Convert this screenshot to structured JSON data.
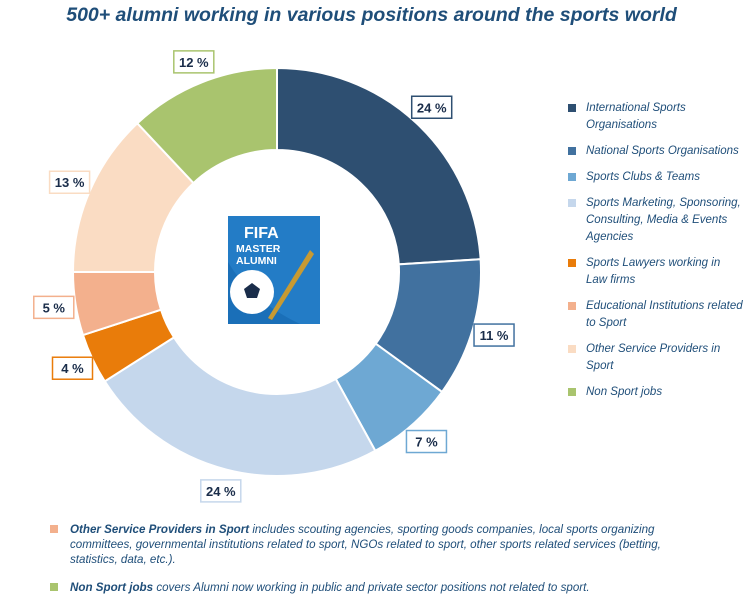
{
  "chart_data": {
    "type": "donut",
    "title": "500+ alumni working in various positions around the sports world",
    "categories": [
      "International Sports Organisations",
      "National Sports Organisations",
      "Sports Clubs & Teams",
      "Sports Marketing, Sponsoring, Consulting, Media & Events Agencies",
      "Sports Lawyers working in Law firms",
      "Educational Institutions related to Sport",
      "Other Service Providers in Sport",
      "Non Sport jobs"
    ],
    "values": [
      24,
      11,
      7,
      24,
      4,
      5,
      13,
      12
    ],
    "data_labels": [
      "24 %",
      "11 %",
      "7 %",
      "24 %",
      "4 %",
      "5 %",
      "13 %",
      "12 %"
    ],
    "colors": [
      "#2e4f71",
      "#41719f",
      "#6ea8d3",
      "#c5d7ec",
      "#e97c0a",
      "#f3b08d",
      "#fadcc3",
      "#a9c46e"
    ],
    "legend_position": "right"
  },
  "logo": {
    "text": "FIFA MASTER ALUMNI"
  },
  "notes": [
    {
      "bold": "Other Service Providers in Sport",
      "text": " includes scouting agencies, sporting goods companies, local sports organizing committees, governmental institutions related to sport, NGOs related to sport, other sports related services (betting, statistics, data, etc.).",
      "color": "#f3b08d"
    },
    {
      "bold": "Non Sport jobs",
      "text": " covers Alumni now working in public and private sector positions not related to sport.",
      "color": "#a9c46e"
    }
  ]
}
